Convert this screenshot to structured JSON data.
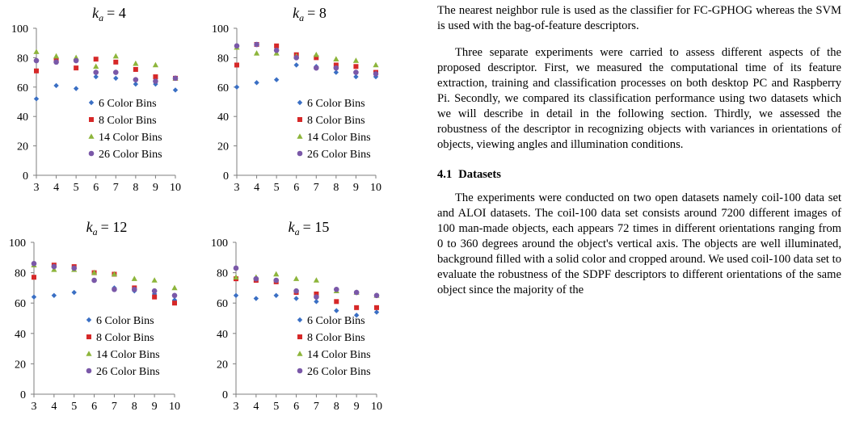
{
  "chart_data": [
    {
      "type": "scatter",
      "title_var": "k",
      "title_sub": "a",
      "title_value": "= 4",
      "x": [
        3,
        4,
        5,
        6,
        7,
        8,
        9,
        10
      ],
      "xlim": [
        3,
        10
      ],
      "ylim": [
        0,
        100
      ],
      "yticks": [
        "0",
        "20",
        "40",
        "60",
        "80",
        "100"
      ],
      "xticks": [
        "3",
        "4",
        "5",
        "6",
        "7",
        "8",
        "9",
        "10"
      ],
      "series": [
        {
          "name": "6 Color Bins",
          "color": "#3a6fc4",
          "marker": "diamond",
          "values": [
            52,
            61,
            59,
            67,
            66,
            62,
            62,
            58
          ]
        },
        {
          "name": "8 Color Bins",
          "color": "#d62828",
          "marker": "square",
          "values": [
            71,
            78,
            73,
            79,
            77,
            72,
            67,
            66
          ]
        },
        {
          "name": "14 Color Bins",
          "color": "#8db53b",
          "marker": "triangle",
          "values": [
            84,
            81,
            80,
            74,
            81,
            76,
            75,
            66
          ]
        },
        {
          "name": "26 Color Bins",
          "color": "#7a58a8",
          "marker": "circle",
          "values": [
            78,
            77,
            78,
            70,
            70,
            65,
            64,
            66
          ]
        }
      ]
    },
    {
      "type": "scatter",
      "title_var": "k",
      "title_sub": "a",
      "title_value": "= 8",
      "x": [
        3,
        4,
        5,
        6,
        7,
        8,
        9,
        10
      ],
      "xlim": [
        3,
        10
      ],
      "ylim": [
        0,
        100
      ],
      "yticks": [
        "0",
        "20",
        "40",
        "60",
        "80",
        "100"
      ],
      "xticks": [
        "3",
        "4",
        "5",
        "6",
        "7",
        "8",
        "9",
        "10"
      ],
      "series": [
        {
          "name": "6 Color Bins",
          "color": "#3a6fc4",
          "marker": "diamond",
          "values": [
            60,
            63,
            65,
            75,
            74,
            70,
            67,
            67
          ]
        },
        {
          "name": "8 Color Bins",
          "color": "#d62828",
          "marker": "square",
          "values": [
            75,
            89,
            88,
            82,
            80,
            75,
            74,
            70
          ]
        },
        {
          "name": "14 Color Bins",
          "color": "#8db53b",
          "marker": "triangle",
          "values": [
            87,
            83,
            83,
            81,
            82,
            79,
            78,
            75
          ]
        },
        {
          "name": "26 Color Bins",
          "color": "#7a58a8",
          "marker": "circle",
          "values": [
            88,
            89,
            85,
            80,
            73,
            73,
            70,
            69
          ]
        }
      ]
    },
    {
      "type": "scatter",
      "title_var": "k",
      "title_sub": "a",
      "title_value": "= 12",
      "x": [
        3,
        4,
        5,
        6,
        7,
        8,
        9,
        10
      ],
      "xlim": [
        3,
        10
      ],
      "ylim": [
        0,
        100
      ],
      "yticks": [
        "0",
        "20",
        "40",
        "60",
        "80",
        "100"
      ],
      "xticks": [
        "3",
        "4",
        "5",
        "6",
        "7",
        "8",
        "9",
        "10"
      ],
      "series": [
        {
          "name": "6 Color Bins",
          "color": "#3a6fc4",
          "marker": "diamond",
          "values": [
            64,
            65,
            67,
            75,
            70,
            68,
            66,
            62
          ]
        },
        {
          "name": "8 Color Bins",
          "color": "#d62828",
          "marker": "square",
          "values": [
            77,
            85,
            84,
            80,
            79,
            70,
            64,
            60
          ]
        },
        {
          "name": "14 Color Bins",
          "color": "#8db53b",
          "marker": "triangle",
          "values": [
            85,
            82,
            82,
            80,
            79,
            76,
            75,
            70
          ]
        },
        {
          "name": "26 Color Bins",
          "color": "#7a58a8",
          "marker": "circle",
          "values": [
            86,
            84,
            83,
            75,
            69,
            69,
            68,
            65
          ]
        }
      ]
    },
    {
      "type": "scatter",
      "title_var": "k",
      "title_sub": "a",
      "title_value": "= 15",
      "x": [
        3,
        4,
        5,
        6,
        7,
        8,
        9,
        10
      ],
      "xlim": [
        3,
        10
      ],
      "ylim": [
        0,
        100
      ],
      "yticks": [
        "0",
        "20",
        "40",
        "60",
        "80",
        "100"
      ],
      "xticks": [
        "3",
        "4",
        "5",
        "6",
        "7",
        "8",
        "9",
        "10"
      ],
      "series": [
        {
          "name": "6 Color Bins",
          "color": "#3a6fc4",
          "marker": "diamond",
          "values": [
            65,
            63,
            65,
            63,
            61,
            55,
            52,
            54
          ]
        },
        {
          "name": "8 Color Bins",
          "color": "#d62828",
          "marker": "square",
          "values": [
            76,
            75,
            74,
            67,
            66,
            61,
            57,
            57
          ]
        },
        {
          "name": "14 Color Bins",
          "color": "#8db53b",
          "marker": "triangle",
          "values": [
            77,
            77,
            79,
            76,
            75,
            68,
            67,
            65
          ]
        },
        {
          "name": "26 Color Bins",
          "color": "#7a58a8",
          "marker": "circle",
          "values": [
            83,
            76,
            75,
            68,
            64,
            69,
            67,
            65
          ]
        }
      ]
    }
  ],
  "text": {
    "p1": "The nearest neighbor rule is used as the classifier for FC-GPHOG whereas the SVM is used with the bag-of-feature descriptors.",
    "p2": "Three separate experiments were carried to assess different aspects of the proposed descriptor. First, we measured the computational time of its feature extraction, training and classification processes on both desktop PC and Raspberry Pi. Secondly, we compared its classification performance using two datasets which we will describe in detail in the following section. Thirdly, we assessed the robustness of the descriptor in recognizing objects with variances in orientations of objects, viewing angles and illumination conditions.",
    "section_number": "4.1",
    "section_title": "Datasets",
    "p3": "The experiments were conducted on two open datasets namely coil-100 data set and ALOI datasets. The coil-100 data set consists around 7200 different images of 100 man-made objects, each appears 72 times in different orientations ranging from 0 to 360 degrees around the object's vertical axis. The objects are well illuminated, background filled with a solid color and cropped around. We used coil-100 data set to evaluate the robustness of the SDPF descriptors to different orientations of the same object since the majority of the"
  }
}
